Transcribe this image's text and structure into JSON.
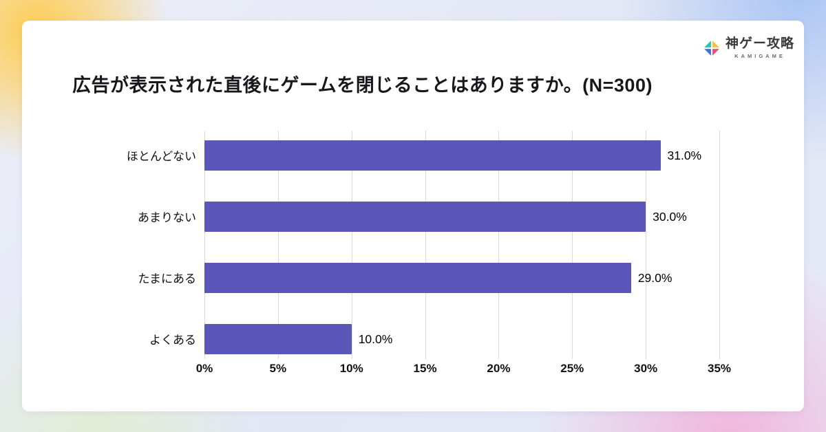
{
  "logo": {
    "title": "神ゲー攻略",
    "subtitle": "KAMIGAME"
  },
  "chart_data": {
    "type": "bar",
    "orientation": "horizontal",
    "title": "広告が表示された直後にゲームを閉じることはありますか。(N=300)",
    "categories": [
      "ほとんどない",
      "あまりない",
      "たまにある",
      "よくある"
    ],
    "values": [
      31.0,
      30.0,
      29.0,
      10.0
    ],
    "value_labels": [
      "31.0%",
      "30.0%",
      "29.0%",
      "10.0%"
    ],
    "x_ticks": [
      0,
      5,
      10,
      15,
      20,
      25,
      30,
      35
    ],
    "x_tick_labels": [
      "0%",
      "5%",
      "10%",
      "15%",
      "20%",
      "25%",
      "30%",
      "35%"
    ],
    "xlim": [
      0,
      35
    ],
    "xlabel": "",
    "ylabel": "",
    "grid": true,
    "legend": false,
    "bar_color": "#5a57b8",
    "grid_color": "#d9d9e2"
  },
  "colors": {
    "bar": "#5a57b8",
    "grid": "#d9d9e2",
    "logo_teal": "#2fc1b4",
    "logo_yellow": "#f7c234",
    "logo_pink": "#ec4d73",
    "logo_blue": "#3f6fe0"
  }
}
